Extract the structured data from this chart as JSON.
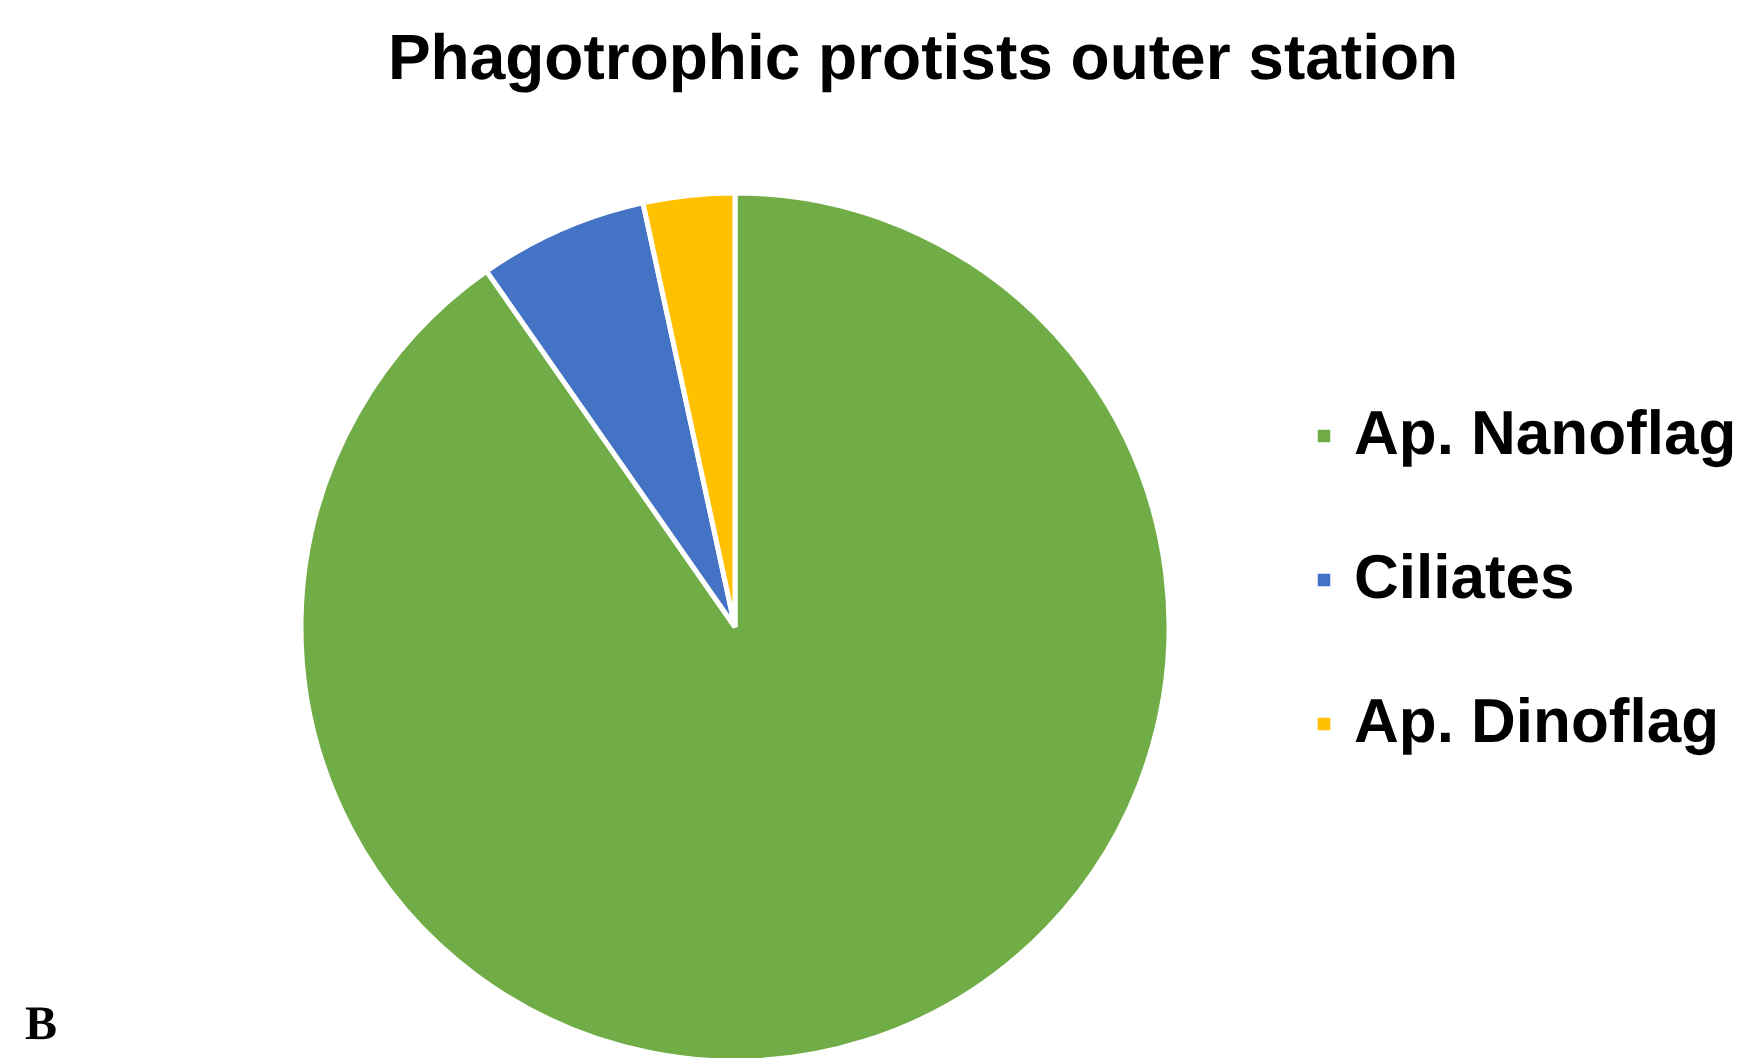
{
  "chart_data": {
    "type": "pie",
    "title": "Phagotrophic protists outer station",
    "categories": [
      "Ap. Nanoflag",
      "Ciliates",
      "Ap. Dinoflag"
    ],
    "values": [
      90.3,
      6.3,
      3.4
    ],
    "colors": [
      "#70ad47",
      "#4472c4",
      "#ffc000"
    ],
    "legend": "right",
    "annotations": [
      "B"
    ]
  }
}
